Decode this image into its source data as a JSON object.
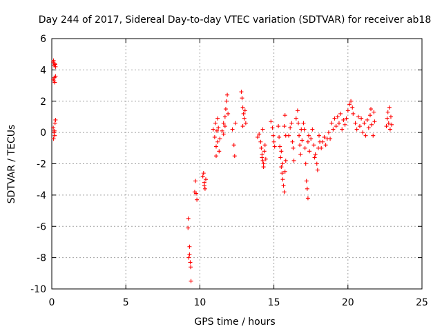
{
  "chart_data": {
    "type": "scatter",
    "title": "Day 244 of 2017, Sidereal Day-to-day VTEC variation (SDTVAR) for receiver ab18",
    "xlabel": "GPS time / hours",
    "ylabel": "SDTVAR / TECUs",
    "xlim": [
      0,
      25
    ],
    "ylim": [
      -10,
      6
    ],
    "x_ticks": [
      "0",
      "5",
      "10",
      "15",
      "20",
      "25"
    ],
    "y_ticks": [
      "-10",
      "-8",
      "-6",
      "-4",
      "-2",
      "0",
      "2",
      "4",
      "6"
    ],
    "grid": true,
    "marker": "plus",
    "color": "#ff0000",
    "series": [
      {
        "name": "SDTVAR",
        "points": [
          [
            0.1,
            4.5
          ],
          [
            0.15,
            4.3
          ],
          [
            0.2,
            4.4
          ],
          [
            0.25,
            4.2
          ],
          [
            0.12,
            4.6
          ],
          [
            0.22,
            4.35
          ],
          [
            0.1,
            3.4
          ],
          [
            0.15,
            3.3
          ],
          [
            0.2,
            3.2
          ],
          [
            0.25,
            3.6
          ],
          [
            0.18,
            3.5
          ],
          [
            0.1,
            0.3
          ],
          [
            0.15,
            0.0
          ],
          [
            0.2,
            -0.2
          ],
          [
            0.25,
            0.8
          ],
          [
            0.18,
            0.1
          ],
          [
            0.12,
            -0.4
          ],
          [
            0.22,
            0.6
          ],
          [
            9.2,
            -6.1
          ],
          [
            9.3,
            -7.3
          ],
          [
            9.25,
            -8.0
          ],
          [
            9.35,
            -8.3
          ],
          [
            9.4,
            -9.5
          ],
          [
            9.3,
            -7.8
          ],
          [
            9.22,
            -5.5
          ],
          [
            9.38,
            -8.6
          ],
          [
            9.7,
            -3.1
          ],
          [
            9.75,
            -3.9
          ],
          [
            9.8,
            -4.3
          ],
          [
            9.65,
            -3.8
          ],
          [
            10.2,
            -2.8
          ],
          [
            10.3,
            -3.2
          ],
          [
            10.35,
            -3.6
          ],
          [
            10.25,
            -2.6
          ],
          [
            10.4,
            -3.0
          ],
          [
            10.3,
            -3.4
          ],
          [
            10.9,
            0.2
          ],
          [
            11.0,
            -0.3
          ],
          [
            11.05,
            0.6
          ],
          [
            11.1,
            -0.9
          ],
          [
            11.15,
            0.1
          ],
          [
            11.2,
            -0.6
          ],
          [
            11.25,
            0.3
          ],
          [
            11.3,
            -1.2
          ],
          [
            11.35,
            -0.4
          ],
          [
            11.1,
            -1.5
          ],
          [
            11.2,
            0.9
          ],
          [
            11.5,
            0.1
          ],
          [
            11.6,
            0.6
          ],
          [
            11.7,
            1.0
          ],
          [
            11.75,
            1.5
          ],
          [
            11.8,
            2.0
          ],
          [
            11.85,
            2.4
          ],
          [
            11.7,
            0.4
          ],
          [
            11.6,
            -0.1
          ],
          [
            11.9,
            1.2
          ],
          [
            12.2,
            0.2
          ],
          [
            12.3,
            -0.8
          ],
          [
            12.35,
            -1.5
          ],
          [
            12.4,
            0.6
          ],
          [
            12.8,
            2.6
          ],
          [
            12.85,
            2.2
          ],
          [
            12.9,
            1.6
          ],
          [
            12.95,
            1.2
          ],
          [
            13.0,
            0.9
          ],
          [
            13.1,
            0.6
          ],
          [
            13.05,
            1.4
          ],
          [
            12.9,
            0.4
          ],
          [
            13.9,
            -0.3
          ],
          [
            14.0,
            -0.1
          ],
          [
            14.1,
            -0.6
          ],
          [
            14.15,
            -1.0
          ],
          [
            14.2,
            -1.4
          ],
          [
            14.25,
            -1.8
          ],
          [
            14.3,
            -2.2
          ],
          [
            14.35,
            -1.2
          ],
          [
            14.4,
            -0.8
          ],
          [
            14.3,
            -2.0
          ],
          [
            14.2,
            -1.6
          ],
          [
            14.25,
            0.2
          ],
          [
            14.45,
            -1.7
          ],
          [
            14.8,
            0.7
          ],
          [
            14.9,
            0.3
          ],
          [
            14.95,
            -0.2
          ],
          [
            15.0,
            -0.6
          ],
          [
            15.05,
            -0.9
          ],
          [
            15.3,
            0.4
          ],
          [
            15.35,
            -0.3
          ],
          [
            15.4,
            -0.9
          ],
          [
            15.45,
            -1.6
          ],
          [
            15.5,
            -2.2
          ],
          [
            15.55,
            -2.6
          ],
          [
            15.6,
            -3.0
          ],
          [
            15.65,
            -3.4
          ],
          [
            15.7,
            -3.8
          ],
          [
            15.75,
            -2.5
          ],
          [
            15.8,
            -1.8
          ],
          [
            15.6,
            -2.0
          ],
          [
            15.5,
            -1.2
          ],
          [
            15.7,
            0.4
          ],
          [
            15.8,
            -0.2
          ],
          [
            15.75,
            1.1
          ],
          [
            16.0,
            -0.2
          ],
          [
            16.1,
            0.3
          ],
          [
            16.2,
            0.6
          ],
          [
            16.25,
            -0.6
          ],
          [
            16.3,
            -1.0
          ],
          [
            16.35,
            -1.8
          ],
          [
            16.5,
            0.9
          ],
          [
            16.6,
            1.4
          ],
          [
            16.65,
            0.6
          ],
          [
            16.7,
            -0.2
          ],
          [
            16.75,
            -0.8
          ],
          [
            16.8,
            -1.4
          ],
          [
            16.85,
            0.2
          ],
          [
            16.9,
            -0.5
          ],
          [
            17.0,
            0.6
          ],
          [
            17.05,
            0.2
          ],
          [
            17.1,
            -1.0
          ],
          [
            17.15,
            -2.0
          ],
          [
            17.2,
            -3.1
          ],
          [
            17.25,
            -3.6
          ],
          [
            17.3,
            -4.2
          ],
          [
            17.3,
            -0.6
          ],
          [
            17.4,
            -1.2
          ],
          [
            17.35,
            -0.2
          ],
          [
            17.5,
            -0.4
          ],
          [
            17.6,
            0.2
          ],
          [
            17.7,
            -0.8
          ],
          [
            17.8,
            -1.4
          ],
          [
            17.9,
            -2.0
          ],
          [
            17.95,
            -2.4
          ],
          [
            18.0,
            -1.0
          ],
          [
            18.05,
            -0.2
          ],
          [
            18.1,
            -0.6
          ],
          [
            17.75,
            -1.6
          ],
          [
            18.2,
            -1.0
          ],
          [
            18.3,
            -0.6
          ],
          [
            18.4,
            -0.3
          ],
          [
            18.5,
            -0.8
          ],
          [
            18.6,
            -0.4
          ],
          [
            18.7,
            0.0
          ],
          [
            18.8,
            -0.4
          ],
          [
            18.9,
            0.6
          ],
          [
            19.0,
            0.2
          ],
          [
            19.1,
            0.9
          ],
          [
            19.2,
            0.4
          ],
          [
            19.3,
            1.0
          ],
          [
            19.4,
            0.6
          ],
          [
            19.5,
            1.2
          ],
          [
            19.6,
            0.2
          ],
          [
            19.7,
            0.8
          ],
          [
            19.8,
            0.5
          ],
          [
            19.9,
            0.9
          ],
          [
            20.0,
            1.4
          ],
          [
            20.1,
            1.8
          ],
          [
            20.2,
            2.0
          ],
          [
            20.3,
            1.6
          ],
          [
            20.35,
            1.2
          ],
          [
            20.5,
            0.6
          ],
          [
            20.6,
            0.2
          ],
          [
            20.7,
            1.0
          ],
          [
            20.8,
            0.4
          ],
          [
            20.9,
            0.9
          ],
          [
            21.0,
            0.0
          ],
          [
            21.1,
            0.6
          ],
          [
            21.2,
            -0.2
          ],
          [
            21.3,
            0.8
          ],
          [
            21.4,
            0.3
          ],
          [
            21.5,
            1.1
          ],
          [
            21.55,
            1.5
          ],
          [
            21.6,
            0.5
          ],
          [
            21.7,
            -0.2
          ],
          [
            21.75,
            1.3
          ],
          [
            21.8,
            0.7
          ],
          [
            22.6,
            0.4
          ],
          [
            22.65,
            0.9
          ],
          [
            22.7,
            1.3
          ],
          [
            22.75,
            0.6
          ],
          [
            22.8,
            1.6
          ],
          [
            22.85,
            0.2
          ],
          [
            22.9,
            1.0
          ],
          [
            22.95,
            0.5
          ]
        ]
      }
    ]
  }
}
